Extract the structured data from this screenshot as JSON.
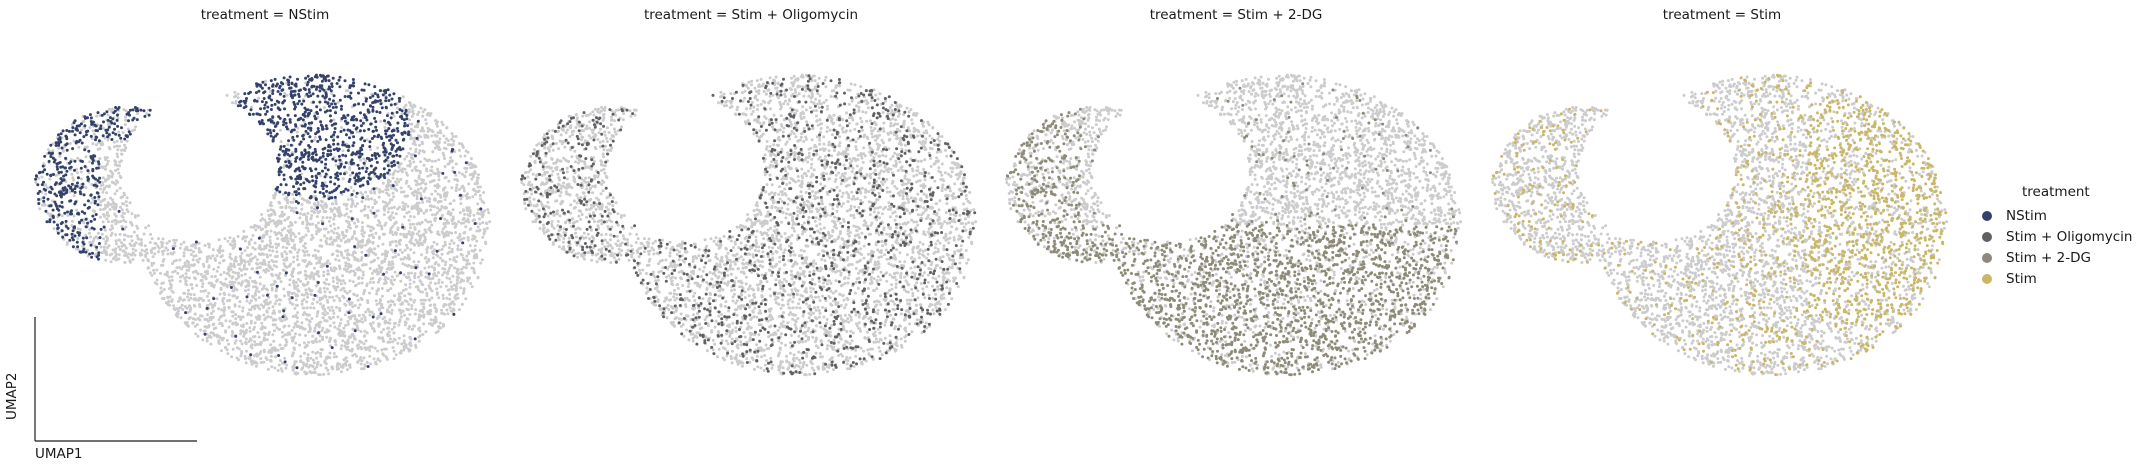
{
  "chart_data": {
    "type": "scatter",
    "legend": {
      "title": "treatment",
      "placement": "right",
      "entries": [
        {
          "label": "NStim",
          "color": "#34426b"
        },
        {
          "label": "Stim + Oligomycin",
          "color": "#5f6165"
        },
        {
          "label": "Stim + 2-DG",
          "color": "#8d8a77"
        },
        {
          "label": "Stim",
          "color": "#c9b767"
        }
      ]
    },
    "background_color": "#cccccc",
    "xlabel": "UMAP1",
    "ylabel": "UMAP2",
    "grid": false,
    "panels": [
      {
        "title": "treatment = NStim",
        "series": "NStim",
        "color": "#34426b",
        "region": "upper-right lobe and left arc"
      },
      {
        "title": "treatment = Stim + Oligomycin",
        "series": "Stim + Oligomycin",
        "color": "#5f6165",
        "region": "scattered throughout"
      },
      {
        "title": "treatment = Stim + 2-DG",
        "series": "Stim + 2-DG",
        "color": "#8d8a77",
        "region": "lower half and left arc"
      },
      {
        "title": "treatment = Stim",
        "series": "Stim",
        "color": "#c9b767",
        "region": "right side"
      }
    ]
  }
}
